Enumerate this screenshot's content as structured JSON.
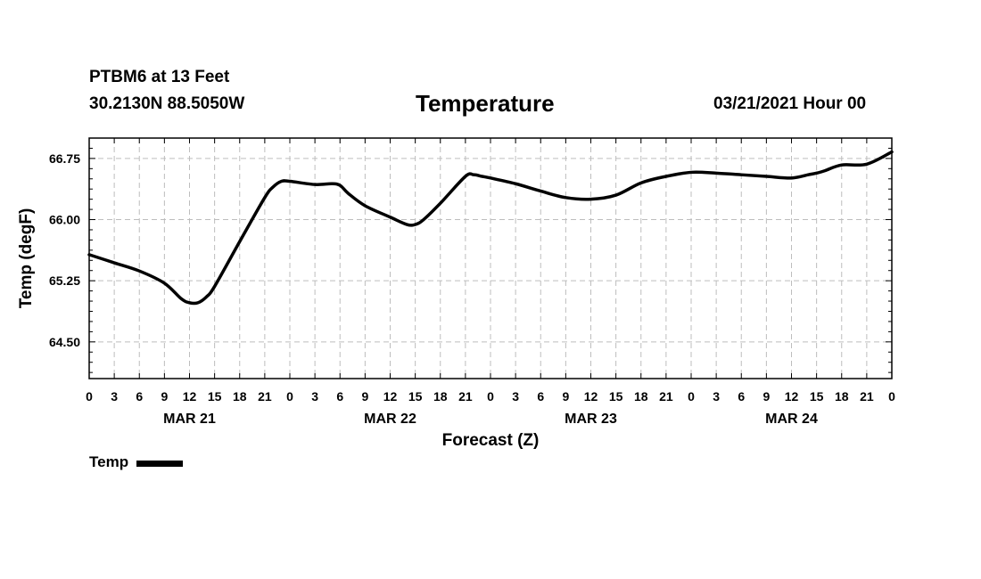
{
  "header": {
    "station": "PTBM6 at 13 Feet",
    "coords": "30.2130N 88.5050W",
    "title": "Temperature",
    "datetime": "03/21/2021 Hour 00"
  },
  "chart_data": {
    "type": "line",
    "title": "Temperature",
    "xlabel": "Forecast (Z)",
    "ylabel": "Temp (degF)",
    "x_unit": "forecast hour",
    "xlim": [
      0,
      96
    ],
    "ylim": [
      64.05,
      67.0
    ],
    "yticks": [
      64.5,
      65.25,
      66.0,
      66.75
    ],
    "ytick_labels": [
      "64.50",
      "65.25",
      "66.00",
      "66.75"
    ],
    "xtick_labels": [
      "0",
      "3",
      "6",
      "9",
      "12",
      "15",
      "18",
      "21",
      "0",
      "3",
      "6",
      "9",
      "12",
      "15",
      "18",
      "21",
      "0",
      "3",
      "6",
      "9",
      "12",
      "15",
      "18",
      "21",
      "0",
      "3",
      "6",
      "9",
      "12",
      "15",
      "18",
      "21",
      "0"
    ],
    "date_labels": [
      {
        "hour": 12,
        "label": "MAR 21"
      },
      {
        "hour": 36,
        "label": "MAR 22"
      },
      {
        "hour": 60,
        "label": "MAR 23"
      },
      {
        "hour": 84,
        "label": "MAR 24"
      }
    ],
    "grid": true,
    "legend_position": "bottom-left",
    "series": [
      {
        "name": "Temp",
        "color": "#000000",
        "x": [
          0,
          3,
          6,
          9,
          11,
          12,
          13,
          14,
          15,
          18,
          21,
          22,
          23,
          24,
          27,
          29,
          30,
          31,
          33,
          36,
          38,
          39,
          40,
          42,
          45,
          46,
          47,
          48,
          51,
          54,
          57,
          60,
          63,
          66,
          69,
          72,
          75,
          78,
          81,
          84,
          86,
          87,
          88,
          90,
          93,
          96
        ],
        "y": [
          65.57,
          65.47,
          65.37,
          65.22,
          65.03,
          64.98,
          64.98,
          65.05,
          65.18,
          65.73,
          66.27,
          66.4,
          66.47,
          66.47,
          66.43,
          66.44,
          66.42,
          66.32,
          66.17,
          66.03,
          65.94,
          65.94,
          66.0,
          66.2,
          66.53,
          66.55,
          66.53,
          66.51,
          66.44,
          66.35,
          66.27,
          66.25,
          66.3,
          66.45,
          66.53,
          66.58,
          66.57,
          66.55,
          66.53,
          66.51,
          66.55,
          66.57,
          66.6,
          66.67,
          66.68,
          66.83
        ]
      }
    ]
  }
}
